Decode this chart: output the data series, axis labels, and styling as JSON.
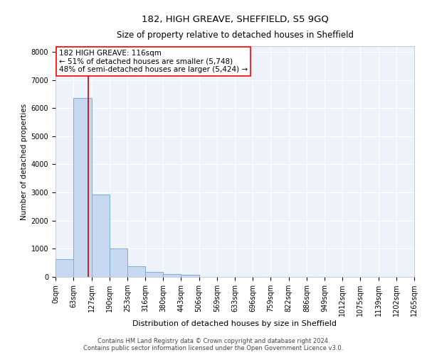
{
  "title": "182, HIGH GREAVE, SHEFFIELD, S5 9GQ",
  "subtitle": "Size of property relative to detached houses in Sheffield",
  "xlabel": "Distribution of detached houses by size in Sheffield",
  "ylabel": "Number of detached properties",
  "bar_color": "#c6d9f0",
  "bar_edge_color": "#7bafd4",
  "marker_color": "#cc0000",
  "background_color": "#eef2fb",
  "grid_color": "#ffffff",
  "annotation_text": "182 HIGH GREAVE: 116sqm\n← 51% of detached houses are smaller (5,748)\n48% of semi-detached houses are larger (5,424) →",
  "property_size_sqm": 116,
  "bin_edges": [
    0,
    63,
    127,
    190,
    253,
    316,
    380,
    443,
    506,
    569,
    633,
    696,
    759,
    822,
    886,
    949,
    1012,
    1075,
    1139,
    1202,
    1265
  ],
  "bin_labels": [
    "0sqm",
    "63sqm",
    "127sqm",
    "190sqm",
    "253sqm",
    "316sqm",
    "380sqm",
    "443sqm",
    "506sqm",
    "569sqm",
    "633sqm",
    "696sqm",
    "759sqm",
    "822sqm",
    "886sqm",
    "949sqm",
    "1012sqm",
    "1075sqm",
    "1139sqm",
    "1202sqm",
    "1265sqm"
  ],
  "bar_heights": [
    620,
    6370,
    2920,
    1000,
    380,
    175,
    100,
    75,
    0,
    0,
    0,
    0,
    0,
    0,
    0,
    0,
    0,
    0,
    0,
    0
  ],
  "ylim": [
    0,
    8200
  ],
  "yticks": [
    0,
    1000,
    2000,
    3000,
    4000,
    5000,
    6000,
    7000,
    8000
  ],
  "footer_line1": "Contains HM Land Registry data © Crown copyright and database right 2024.",
  "footer_line2": "Contains public sector information licensed under the Open Government Licence v3.0.",
  "title_fontsize": 9.5,
  "subtitle_fontsize": 8.5,
  "xlabel_fontsize": 8,
  "ylabel_fontsize": 7.5,
  "tick_fontsize": 7,
  "footer_fontsize": 6,
  "annotation_fontsize": 7.5
}
